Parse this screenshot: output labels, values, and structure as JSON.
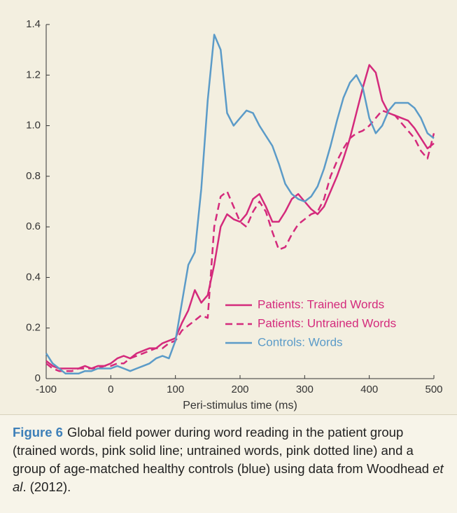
{
  "chart_data": {
    "type": "line",
    "xlabel": "Peri-stimulus time (ms)",
    "x": [
      -100,
      -90,
      -80,
      -70,
      -60,
      -50,
      -40,
      -30,
      -20,
      -10,
      0,
      10,
      20,
      30,
      40,
      50,
      60,
      70,
      80,
      90,
      100,
      110,
      120,
      130,
      140,
      150,
      160,
      170,
      180,
      190,
      200,
      210,
      220,
      230,
      240,
      250,
      260,
      270,
      280,
      290,
      300,
      310,
      320,
      330,
      340,
      350,
      360,
      370,
      380,
      390,
      400,
      410,
      420,
      430,
      440,
      450,
      460,
      470,
      480,
      490,
      500
    ],
    "series": [
      {
        "name": "Patients: Trained Words",
        "color": "#d42a7c",
        "linestyle": "solid",
        "values": [
          0.07,
          0.05,
          0.04,
          0.04,
          0.04,
          0.04,
          0.05,
          0.04,
          0.05,
          0.05,
          0.06,
          0.08,
          0.09,
          0.08,
          0.1,
          0.11,
          0.12,
          0.12,
          0.14,
          0.15,
          0.16,
          0.22,
          0.27,
          0.35,
          0.3,
          0.33,
          0.45,
          0.6,
          0.65,
          0.63,
          0.62,
          0.65,
          0.71,
          0.73,
          0.68,
          0.62,
          0.62,
          0.66,
          0.71,
          0.73,
          0.7,
          0.67,
          0.65,
          0.68,
          0.74,
          0.8,
          0.87,
          0.95,
          1.05,
          1.15,
          1.24,
          1.21,
          1.1,
          1.05,
          1.04,
          1.03,
          1.02,
          0.99,
          0.95,
          0.91,
          0.93
        ]
      },
      {
        "name": "Patients: Untrained Words",
        "color": "#d42a7c",
        "linestyle": "dashed",
        "values": [
          0.06,
          0.04,
          0.03,
          0.03,
          0.03,
          0.04,
          0.04,
          0.04,
          0.04,
          0.05,
          0.05,
          0.06,
          0.06,
          0.08,
          0.09,
          0.1,
          0.11,
          0.12,
          0.12,
          0.14,
          0.15,
          0.19,
          0.21,
          0.23,
          0.25,
          0.24,
          0.6,
          0.72,
          0.74,
          0.68,
          0.62,
          0.6,
          0.66,
          0.7,
          0.66,
          0.58,
          0.51,
          0.52,
          0.57,
          0.61,
          0.63,
          0.65,
          0.66,
          0.71,
          0.8,
          0.86,
          0.91,
          0.95,
          0.97,
          0.98,
          1.0,
          1.03,
          1.06,
          1.05,
          1.04,
          1.01,
          0.98,
          0.95,
          0.9,
          0.87,
          0.97
        ]
      },
      {
        "name": "Controls: Words",
        "color": "#5b9bc8",
        "linestyle": "solid",
        "values": [
          0.1,
          0.06,
          0.04,
          0.02,
          0.02,
          0.02,
          0.03,
          0.03,
          0.04,
          0.04,
          0.04,
          0.05,
          0.04,
          0.03,
          0.04,
          0.05,
          0.06,
          0.08,
          0.09,
          0.08,
          0.15,
          0.3,
          0.45,
          0.5,
          0.75,
          1.1,
          1.36,
          1.3,
          1.05,
          1.0,
          1.03,
          1.06,
          1.05,
          1.0,
          0.96,
          0.92,
          0.85,
          0.77,
          0.73,
          0.71,
          0.7,
          0.72,
          0.76,
          0.83,
          0.92,
          1.02,
          1.11,
          1.17,
          1.2,
          1.15,
          1.03,
          0.97,
          1.0,
          1.06,
          1.09,
          1.09,
          1.09,
          1.07,
          1.03,
          0.97,
          0.95
        ]
      }
    ],
    "xlim": [
      -100,
      500
    ],
    "xticks": [
      -100,
      0,
      100,
      200,
      300,
      400,
      500
    ],
    "ylim": [
      0,
      1.4
    ],
    "yticks": [
      0,
      0.2,
      0.4,
      0.6,
      0.8,
      {
        "value": 1,
        "label": "1.0"
      },
      1.2,
      1.4
    ]
  },
  "caption": {
    "label": "Figure 6",
    "parts": [
      "Global field power during word reading in the patient group (trained words, pink solid line; untrained words, pink dotted line) and a group of age-matched healthy controls (blue) using data from Woodhead ",
      "et al",
      ". (2012)."
    ]
  }
}
